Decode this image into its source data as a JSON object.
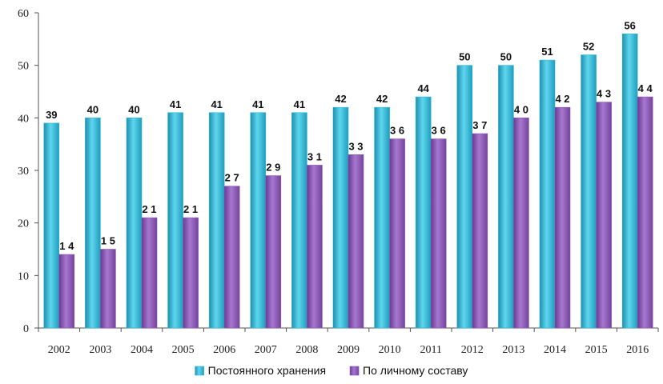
{
  "chart_data": {
    "type": "bar",
    "categories": [
      "2002",
      "2003",
      "2004",
      "2005",
      "2006",
      "2007",
      "2008",
      "2009",
      "2010",
      "2011",
      "2012",
      "2013",
      "2014",
      "2015",
      "2016"
    ],
    "series": [
      {
        "name": "Постоянного хранения",
        "color": "#2fb7d4",
        "values": [
          39,
          40,
          40,
          41,
          41,
          41,
          41,
          42,
          42,
          44,
          50,
          50,
          51,
          52,
          56
        ],
        "data_labels": [
          "39",
          "40",
          "40",
          "41",
          "41",
          "41",
          "41",
          "42",
          "42",
          "44",
          "50",
          "50",
          "51",
          "52",
          "56"
        ]
      },
      {
        "name": "По личному составу",
        "color": "#8b55b4",
        "values": [
          14,
          15,
          21,
          21,
          27,
          29,
          31,
          33,
          36,
          36,
          37,
          40,
          42,
          43,
          44
        ],
        "data_labels": [
          "1 4",
          "1 5",
          "2 1",
          "2 1",
          "2 7",
          "2 9",
          "3 1",
          "3 3",
          "3 6",
          "3 6",
          "3 7",
          "4 0",
          "4 2",
          "4 3",
          "4 4"
        ]
      }
    ],
    "ylim": [
      0,
      60
    ],
    "yticks": [
      0,
      10,
      20,
      30,
      40,
      50,
      60
    ],
    "grid": false,
    "legend_position": "bottom"
  }
}
